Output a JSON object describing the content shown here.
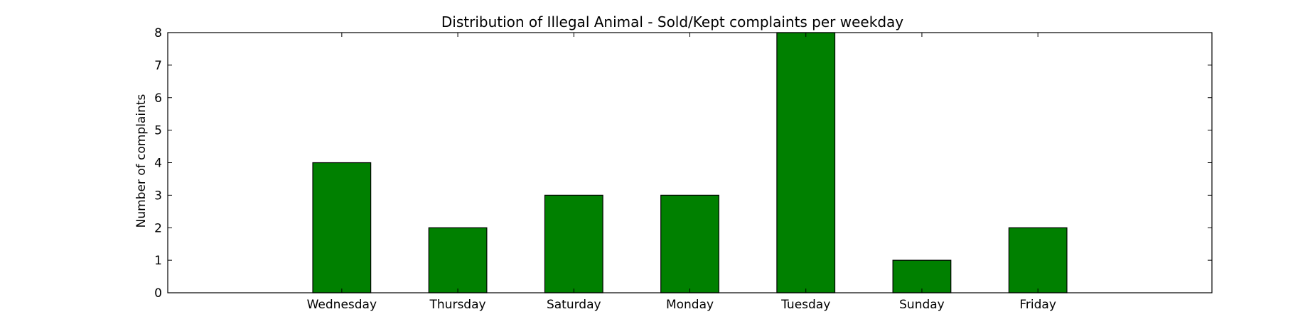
{
  "chart_data": {
    "type": "bar",
    "title": "Distribution of  Illegal Animal - Sold/Kept complaints per weekday",
    "xlabel": "",
    "ylabel": "Number of complaints",
    "categories": [
      "Wednesday",
      "Thursday",
      "Saturday",
      "Monday",
      "Tuesday",
      "Sunday",
      "Friday"
    ],
    "values": [
      4,
      2,
      3,
      3,
      8,
      1,
      2
    ],
    "ylim": [
      0,
      8
    ],
    "yticks": [
      0,
      1,
      2,
      3,
      4,
      5,
      6,
      7,
      8
    ],
    "bar_color": "#008000",
    "grid": false,
    "legend": "none"
  }
}
